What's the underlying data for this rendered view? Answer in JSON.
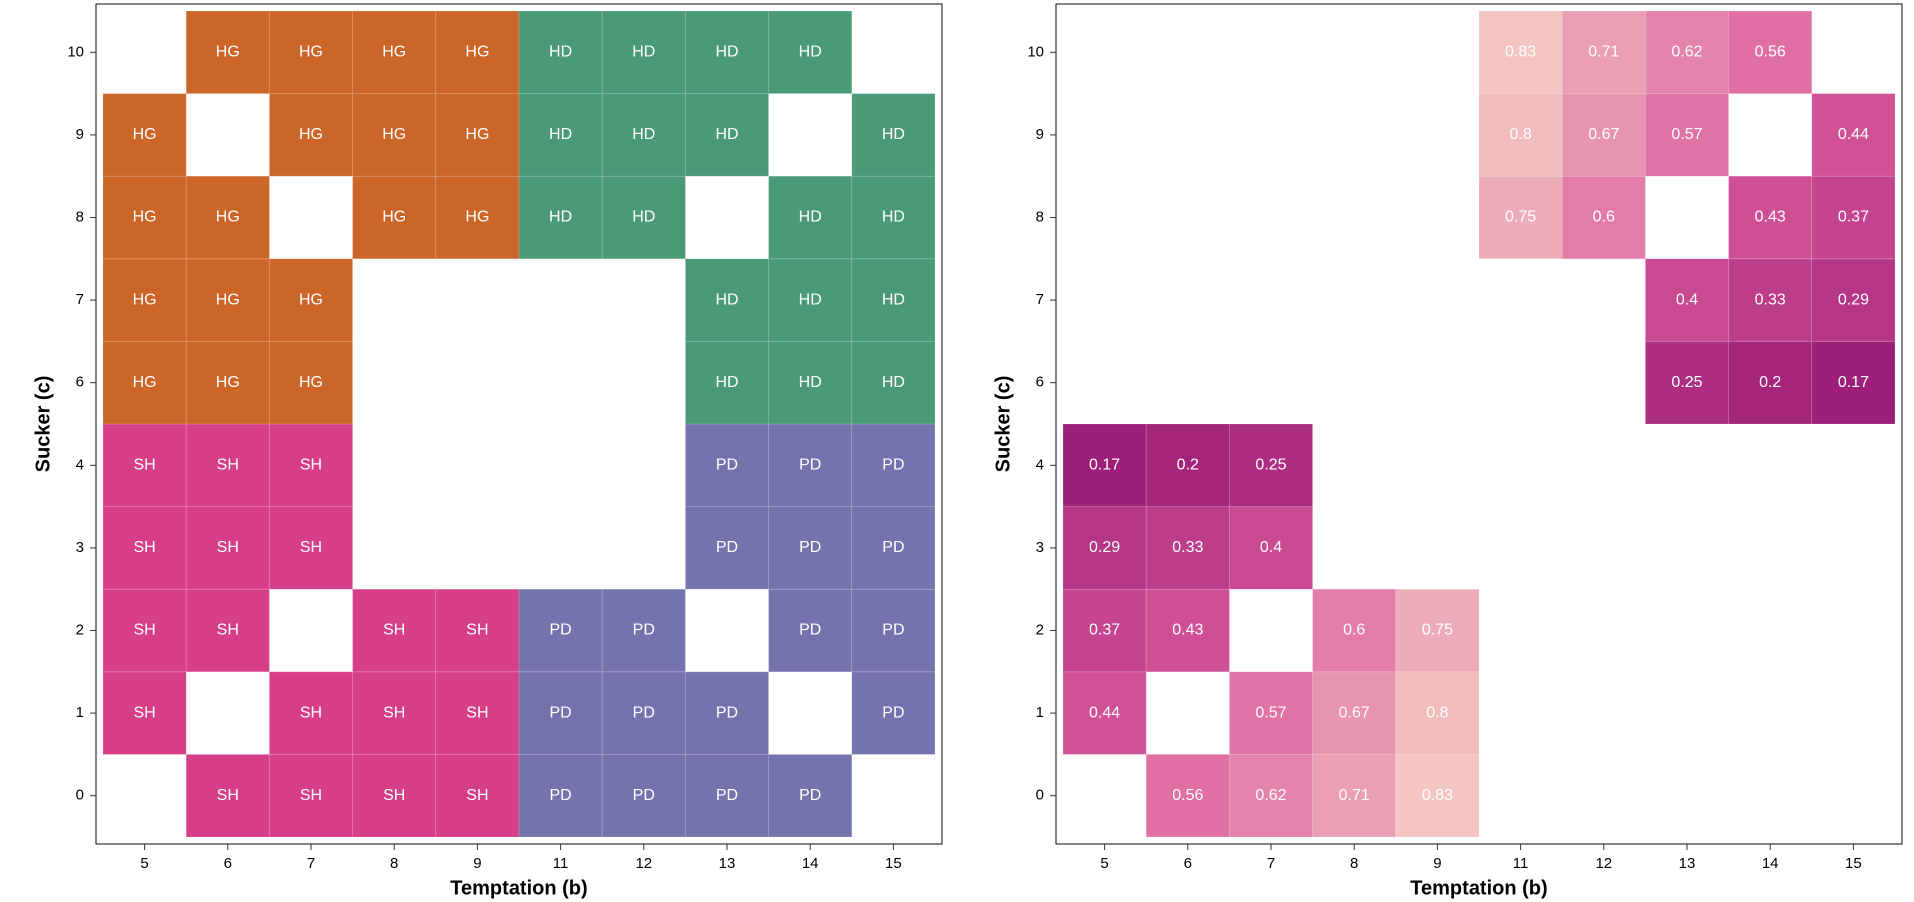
{
  "chart_data": [
    {
      "type": "heatmap-category",
      "x_label": "Temptation (b)",
      "y_label": "Sucker (c)",
      "x": [
        "5",
        "6",
        "7",
        "8",
        "9",
        "11",
        "12",
        "13",
        "14",
        "15"
      ],
      "y": [
        "0",
        "1",
        "2",
        "3",
        "4",
        "6",
        "7",
        "8",
        "9",
        "10"
      ],
      "colors": {
        "HG": "#cc6528",
        "HD": "#4a9a78",
        "SH": "#d63f88",
        "PD": "#7473ae"
      },
      "values": [
        [
          null,
          "SH",
          "SH",
          "SH",
          "SH",
          "PD",
          "PD",
          "PD",
          "PD",
          null
        ],
        [
          "SH",
          null,
          "SH",
          "SH",
          "SH",
          "PD",
          "PD",
          "PD",
          null,
          "PD"
        ],
        [
          "SH",
          "SH",
          null,
          "SH",
          "SH",
          "PD",
          "PD",
          null,
          "PD",
          "PD"
        ],
        [
          "SH",
          "SH",
          "SH",
          null,
          null,
          null,
          null,
          "PD",
          "PD",
          "PD"
        ],
        [
          "SH",
          "SH",
          "SH",
          null,
          null,
          null,
          null,
          "PD",
          "PD",
          "PD"
        ],
        [
          "HG",
          "HG",
          "HG",
          null,
          null,
          null,
          null,
          "HD",
          "HD",
          "HD"
        ],
        [
          "HG",
          "HG",
          "HG",
          null,
          null,
          null,
          null,
          "HD",
          "HD",
          "HD"
        ],
        [
          "HG",
          "HG",
          null,
          "HG",
          "HG",
          "HD",
          "HD",
          null,
          "HD",
          "HD"
        ],
        [
          "HG",
          null,
          "HG",
          "HG",
          "HG",
          "HD",
          "HD",
          "HD",
          null,
          "HD"
        ],
        [
          null,
          "HG",
          "HG",
          "HG",
          "HG",
          "HD",
          "HD",
          "HD",
          "HD",
          null
        ]
      ]
    },
    {
      "type": "heatmap",
      "x_label": "Temptation (b)",
      "y_label": "Sucker (c)",
      "x": [
        "5",
        "6",
        "7",
        "8",
        "9",
        "11",
        "12",
        "13",
        "14",
        "15"
      ],
      "y": [
        "0",
        "1",
        "2",
        "3",
        "4",
        "6",
        "7",
        "8",
        "9",
        "10"
      ],
      "colorscale": [
        "#9e1f78",
        "#dc5c9e",
        "#f3c6c1"
      ],
      "values": [
        [
          null,
          0.56,
          0.62,
          0.71,
          0.83,
          null,
          null,
          null,
          null,
          null
        ],
        [
          0.44,
          null,
          0.57,
          0.67,
          0.8,
          null,
          null,
          null,
          null,
          null
        ],
        [
          0.37,
          0.43,
          null,
          0.6,
          0.75,
          null,
          null,
          null,
          null,
          null
        ],
        [
          0.29,
          0.33,
          0.4,
          null,
          null,
          null,
          null,
          null,
          null,
          null
        ],
        [
          0.17,
          0.2,
          0.25,
          null,
          null,
          null,
          null,
          null,
          null,
          null
        ],
        [
          null,
          null,
          null,
          null,
          null,
          null,
          null,
          0.25,
          0.2,
          0.17
        ],
        [
          null,
          null,
          null,
          null,
          null,
          null,
          null,
          0.4,
          0.33,
          0.29
        ],
        [
          null,
          null,
          null,
          null,
          null,
          0.75,
          0.6,
          null,
          0.43,
          0.37
        ],
        [
          null,
          null,
          null,
          null,
          null,
          0.8,
          0.67,
          0.57,
          null,
          0.44
        ],
        [
          null,
          null,
          null,
          null,
          null,
          0.83,
          0.71,
          0.62,
          0.56,
          null
        ]
      ]
    }
  ]
}
